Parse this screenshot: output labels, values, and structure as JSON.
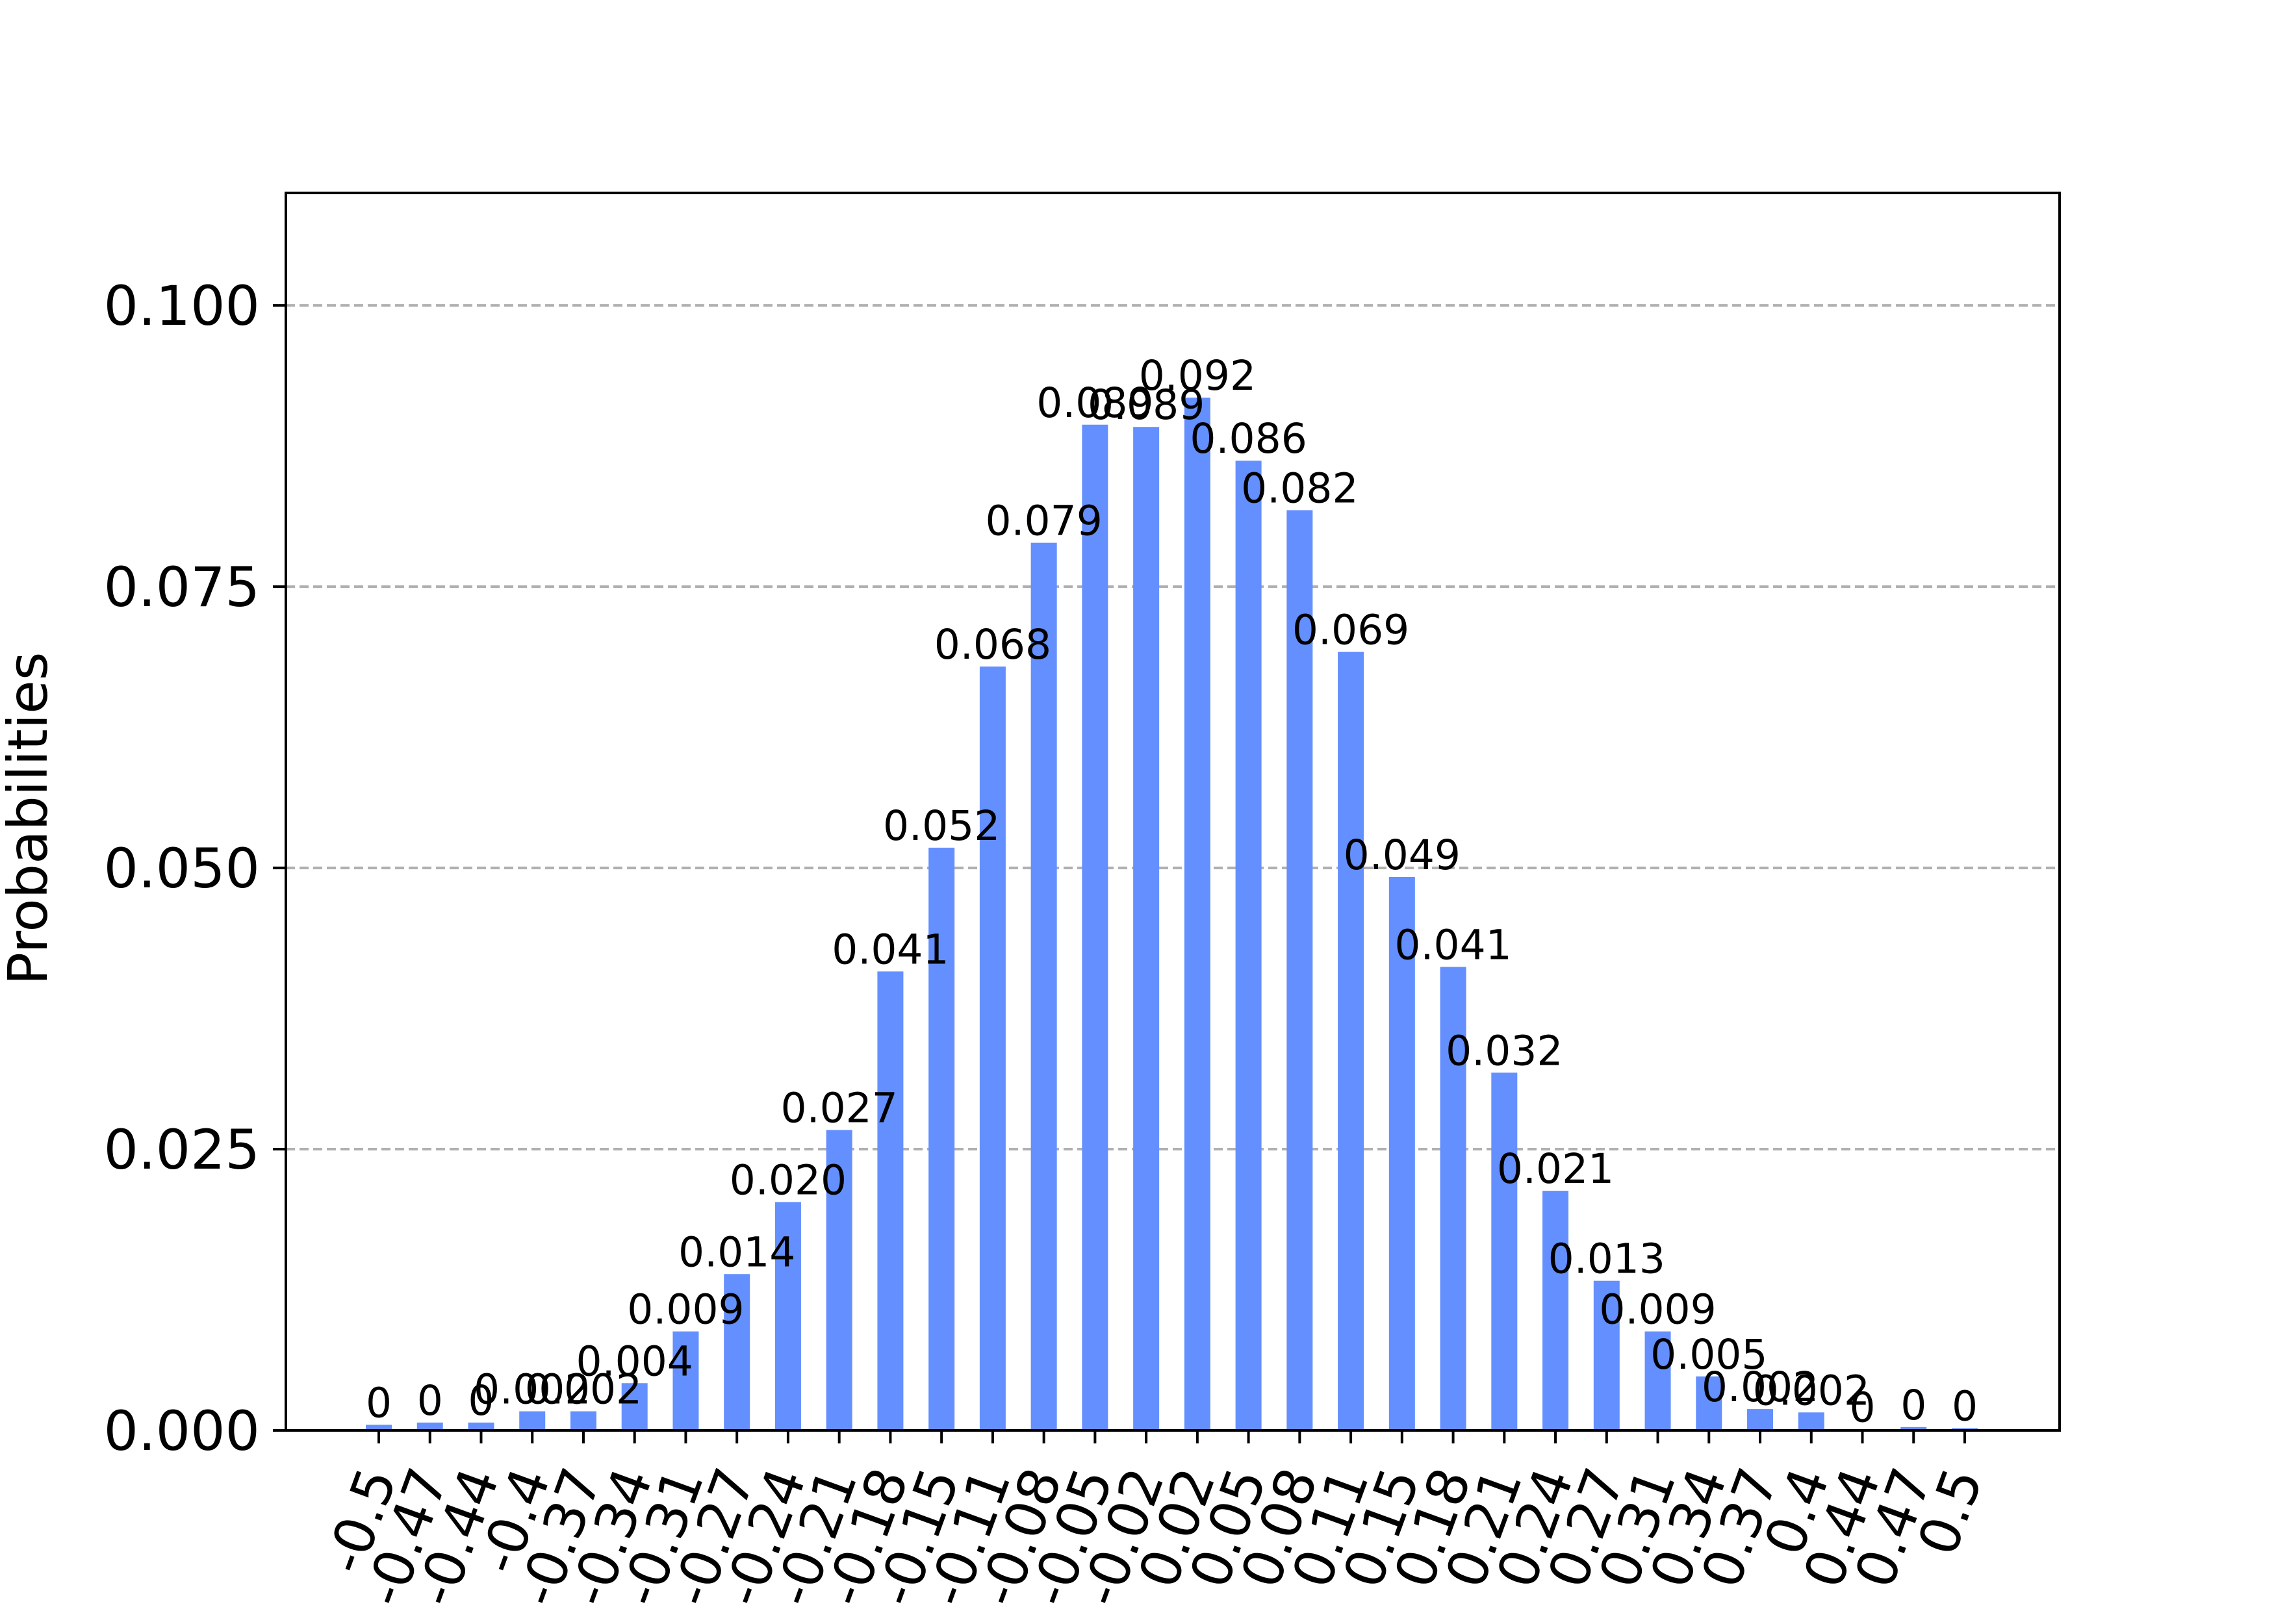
{
  "chart_data": {
    "type": "bar",
    "ylabel": "Probabilities",
    "xlabel": "",
    "ylim": [
      0,
      0.11
    ],
    "yticks": [
      "0.000",
      "0.025",
      "0.050",
      "0.075",
      "0.100"
    ],
    "ytick_values": [
      0,
      0.025,
      0.05,
      0.075,
      0.1
    ],
    "grid": "horizontal dashed",
    "bar_color": "#648fff",
    "categories": [
      "-0.5",
      "-0.47",
      "-0.44",
      "-0.4",
      "-0.37",
      "-0.34",
      "-0.31",
      "-0.27",
      "-0.24",
      "-0.21",
      "-0.18",
      "-0.15",
      "-0.11",
      "-0.08",
      "-0.05",
      "-0.02",
      "0.02",
      "0.05",
      "0.08",
      "0.11",
      "0.15",
      "0.18",
      "0.21",
      "0.24",
      "0.27",
      "0.31",
      "0.34",
      "0.37",
      "0.4",
      "0.44",
      "0.47",
      "0.5"
    ],
    "values": [
      0.0005,
      0.0007,
      0.0007,
      0.0017,
      0.0017,
      0.0042,
      0.0088,
      0.0139,
      0.0203,
      0.0267,
      0.0408,
      0.0518,
      0.0679,
      0.0789,
      0.0894,
      0.0892,
      0.0918,
      0.0862,
      0.0818,
      0.0692,
      0.0492,
      0.0412,
      0.0318,
      0.0213,
      0.0133,
      0.0088,
      0.0048,
      0.0019,
      0.0016,
      0.0001,
      0.0003,
      0.0002
    ],
    "labels": [
      "0",
      "0",
      "0",
      "0.002",
      "0.002",
      "0.004",
      "0.009",
      "0.014",
      "0.020",
      "0.027",
      "0.041",
      "0.052",
      "0.068",
      "0.079",
      "0.089",
      "0.089",
      "0.092",
      "0.086",
      "0.082",
      "0.069",
      "0.049",
      "0.041",
      "0.032",
      "0.021",
      "0.013",
      "0.009",
      "0.005",
      "0.002",
      "0.002",
      "0",
      "0",
      "0"
    ]
  }
}
